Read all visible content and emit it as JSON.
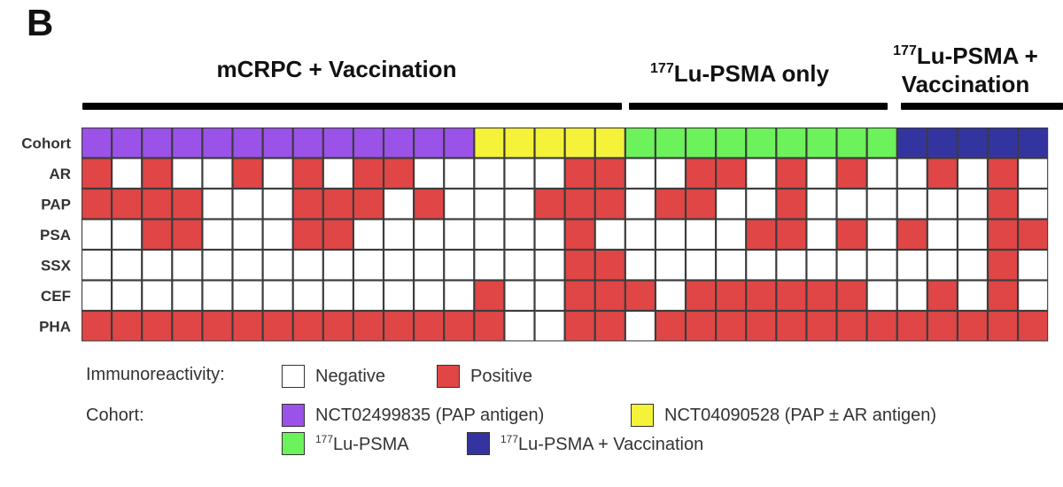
{
  "panel_letter": "B",
  "groups": [
    {
      "label": "mCRPC + Vaccination"
    },
    {
      "label_sup": "177",
      "label": "Lu-PSMA only"
    },
    {
      "label_sup": "177",
      "label": "Lu-PSMA +",
      "label_line2": "Vaccination"
    }
  ],
  "chart_data": {
    "type": "heatmap",
    "rows": [
      "Cohort",
      "AR",
      "PAP",
      "PSA",
      "SSX",
      "CEF",
      "PHA"
    ],
    "cohort_row": [
      "A",
      "A",
      "A",
      "A",
      "A",
      "A",
      "A",
      "A",
      "A",
      "A",
      "A",
      "A",
      "A",
      "B",
      "B",
      "B",
      "B",
      "B",
      "C",
      "C",
      "C",
      "C",
      "C",
      "C",
      "C",
      "C",
      "C",
      "D",
      "D",
      "D",
      "D",
      "D"
    ],
    "values": {
      "AR": [
        1,
        0,
        1,
        0,
        0,
        1,
        0,
        1,
        0,
        1,
        1,
        0,
        0,
        0,
        0,
        0,
        1,
        1,
        0,
        0,
        1,
        1,
        0,
        1,
        0,
        1,
        0,
        0,
        1,
        0,
        1,
        0
      ],
      "PAP": [
        1,
        1,
        1,
        1,
        0,
        0,
        0,
        1,
        1,
        1,
        0,
        1,
        0,
        0,
        0,
        1,
        1,
        1,
        0,
        1,
        1,
        0,
        0,
        1,
        0,
        0,
        0,
        0,
        0,
        0,
        1,
        0
      ],
      "PSA": [
        0,
        0,
        1,
        1,
        0,
        0,
        0,
        1,
        1,
        0,
        0,
        0,
        0,
        0,
        0,
        0,
        1,
        0,
        0,
        0,
        0,
        0,
        1,
        1,
        0,
        1,
        0,
        1,
        0,
        0,
        1,
        1
      ],
      "SSX": [
        0,
        0,
        0,
        0,
        0,
        0,
        0,
        0,
        0,
        0,
        0,
        0,
        0,
        0,
        0,
        0,
        1,
        1,
        0,
        0,
        0,
        0,
        0,
        0,
        0,
        0,
        0,
        0,
        0,
        0,
        1,
        0
      ],
      "CEF": [
        0,
        0,
        0,
        0,
        0,
        0,
        0,
        0,
        0,
        0,
        0,
        0,
        0,
        1,
        0,
        0,
        1,
        1,
        1,
        0,
        1,
        1,
        1,
        1,
        1,
        1,
        0,
        0,
        1,
        0,
        1,
        0
      ],
      "PHA": [
        1,
        1,
        1,
        1,
        1,
        1,
        1,
        1,
        1,
        1,
        1,
        1,
        1,
        1,
        0,
        0,
        1,
        1,
        0,
        1,
        1,
        1,
        1,
        1,
        1,
        1,
        1,
        1,
        1,
        1,
        1,
        1
      ]
    },
    "colors": {
      "A": "#9B52E8",
      "B": "#F5F23A",
      "C": "#6CF25A",
      "D": "#3434A0",
      "positive": "#E04646",
      "negative": "#FFFFFF"
    }
  },
  "legend": {
    "immuno_title": "Immunoreactivity:",
    "negative": "Negative",
    "positive": "Positive",
    "cohort_title": "Cohort:",
    "cohorts": [
      {
        "label": "NCT02499835 (PAP antigen)",
        "color": "#9B52E8"
      },
      {
        "label": "NCT04090528 (PAP ± AR antigen)",
        "color": "#F5F23A"
      },
      {
        "sup": "177",
        "label": "Lu-PSMA",
        "color": "#6CF25A"
      },
      {
        "sup": "177",
        "label": "Lu-PSMA + Vaccination",
        "color": "#3434A0"
      }
    ]
  }
}
